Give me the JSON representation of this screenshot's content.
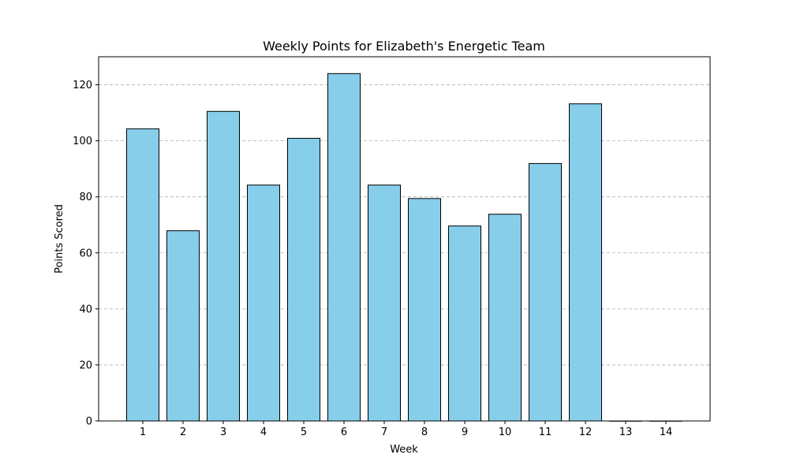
{
  "chart_data": {
    "type": "bar",
    "title": "Weekly Points for Elizabeth's Energetic Team",
    "xlabel": "Week",
    "ylabel": "Points Scored",
    "categories": [
      "1",
      "2",
      "3",
      "4",
      "5",
      "6",
      "7",
      "8",
      "9",
      "10",
      "11",
      "12",
      "13",
      "14"
    ],
    "values": [
      104.3,
      67.9,
      110.5,
      84.2,
      100.9,
      124.0,
      84.2,
      79.4,
      69.6,
      73.8,
      91.9,
      113.2,
      0,
      0
    ],
    "ylim": [
      0,
      130
    ],
    "yticks": [
      0,
      20,
      40,
      60,
      80,
      100,
      120
    ],
    "grid": "y-dashed",
    "colors": {
      "bar": "#87ceeb",
      "edge": "#000000"
    }
  }
}
